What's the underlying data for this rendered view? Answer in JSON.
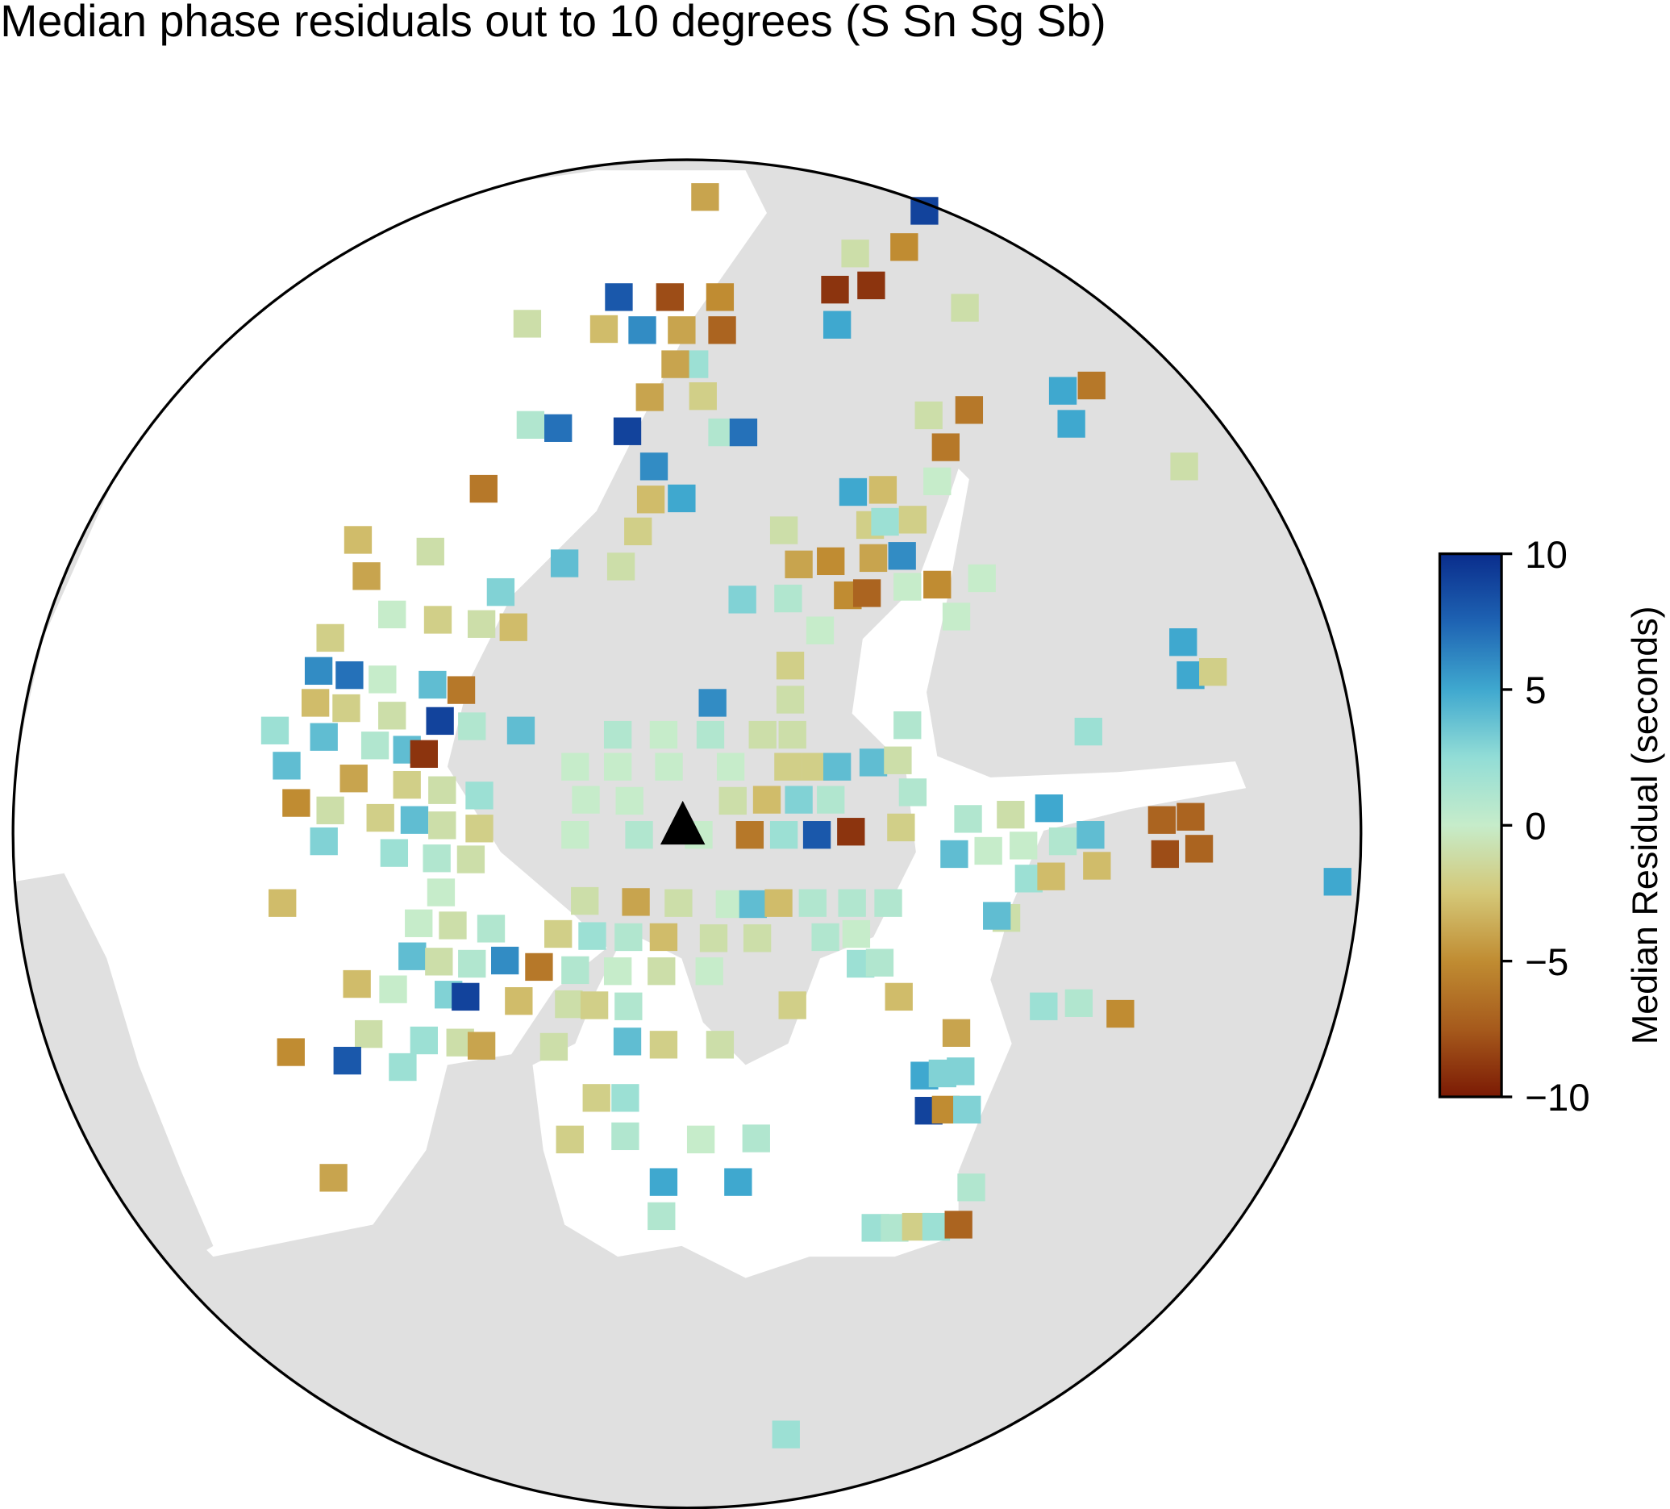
{
  "chart_data": {
    "type": "map",
    "title": "Median phase residuals out to 10 degrees (S Sn Sg Sb)",
    "colorbar": {
      "label": "Median Residual (seconds)",
      "lim": [
        -10,
        10
      ],
      "ticks": [
        {
          "value": 10,
          "label": "10"
        },
        {
          "value": 5,
          "label": "5"
        },
        {
          "value": 0,
          "label": "0"
        },
        {
          "value": -5,
          "label": "−5"
        },
        {
          "value": -10,
          "label": "−10"
        }
      ]
    },
    "values": [
      -4,
      9,
      -1,
      -5,
      8,
      -8,
      -5,
      -9,
      -9,
      -1,
      5,
      -1,
      -3,
      6,
      -4,
      -7,
      2,
      -4,
      5,
      -6,
      -4,
      -2,
      -1,
      -6,
      5,
      1,
      7,
      9,
      1,
      7,
      -6,
      -1,
      6,
      -6,
      5,
      -3,
      0,
      5,
      -3,
      -2,
      2,
      -2,
      -1,
      -3,
      -1,
      -2,
      4,
      -1,
      -4,
      -5,
      -4,
      6,
      -4,
      0,
      -5,
      0,
      3,
      3,
      1,
      -5,
      -7,
      0,
      -2,
      -1,
      -3,
      0,
      0,
      -2,
      5,
      6,
      7,
      0,
      4,
      -6,
      -2,
      5,
      -2,
      6,
      -1,
      -3,
      -2,
      -1,
      9,
      1,
      4,
      2,
      4,
      1,
      4,
      -9,
      1,
      0,
      1,
      -1,
      -1,
      1,
      2,
      0,
      0,
      0,
      0,
      -2,
      -2,
      4,
      4,
      -1,
      4,
      -4,
      -2,
      -1,
      2,
      1,
      0,
      0,
      -1,
      -3,
      3,
      1,
      -5,
      -1,
      -2,
      4,
      -1,
      -2,
      1,
      -1,
      5,
      0,
      1,
      0,
      -6,
      2,
      8,
      -9,
      -2,
      -7,
      -7,
      3,
      2,
      1,
      -1,
      4,
      0,
      0,
      1,
      4,
      -3,
      -8,
      -7,
      5,
      0,
      -1,
      -4,
      -1,
      0,
      4,
      -3,
      1,
      1,
      1,
      -3,
      2,
      -3,
      0,
      -1,
      1,
      -2,
      2,
      1,
      -3,
      -1,
      -1,
      1,
      0,
      -1,
      4,
      4,
      -1,
      1,
      6,
      -6,
      1,
      0,
      -1,
      0,
      2,
      1,
      -3,
      0,
      3,
      9,
      -3,
      -1,
      -2,
      1,
      -2,
      -3,
      2,
      1,
      -5,
      -1,
      2,
      -1,
      -4,
      -1,
      4,
      -2,
      -1,
      -4,
      -5,
      8,
      2,
      5,
      3,
      3,
      2,
      -2,
      9,
      -5,
      3,
      -2,
      1,
      0,
      1,
      -4,
      5,
      5,
      1,
      2,
      1,
      -2,
      2,
      -7,
      1,
      2
    ]
  }
}
